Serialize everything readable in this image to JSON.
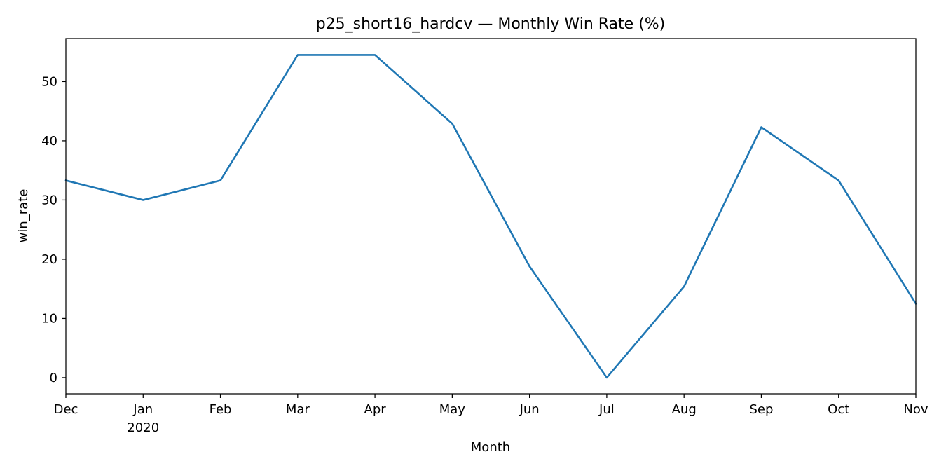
{
  "chart_data": {
    "type": "line",
    "title": "p25_short16_hardcv — Monthly Win Rate (%)",
    "xlabel": "Month",
    "ylabel": "win_rate",
    "categories": [
      "2019-12",
      "2020-01",
      "2020-02",
      "2020-03",
      "2020-04",
      "2020-05",
      "2020-06",
      "2020-07",
      "2020-08",
      "2020-09",
      "2020-10",
      "2020-11"
    ],
    "x_tick_labels": [
      {
        "label": "Dec",
        "sublabel": ""
      },
      {
        "label": "Jan",
        "sublabel": "2020"
      },
      {
        "label": "Feb",
        "sublabel": ""
      },
      {
        "label": "Mar",
        "sublabel": ""
      },
      {
        "label": "Apr",
        "sublabel": ""
      },
      {
        "label": "May",
        "sublabel": ""
      },
      {
        "label": "Jun",
        "sublabel": ""
      },
      {
        "label": "Jul",
        "sublabel": ""
      },
      {
        "label": "Aug",
        "sublabel": ""
      },
      {
        "label": "Sep",
        "sublabel": ""
      },
      {
        "label": "Oct",
        "sublabel": ""
      },
      {
        "label": "Nov",
        "sublabel": ""
      }
    ],
    "series": [
      {
        "values": [
          33.3,
          30.0,
          33.3,
          54.5,
          54.5,
          42.9,
          18.8,
          0.0,
          15.4,
          42.3,
          33.3,
          12.5
        ],
        "color": "#1f77b4"
      }
    ],
    "yticks": [
      0,
      10,
      20,
      30,
      40,
      50
    ],
    "ylim": [
      -2.73,
      57.27
    ],
    "grid": false,
    "legend": "none"
  }
}
